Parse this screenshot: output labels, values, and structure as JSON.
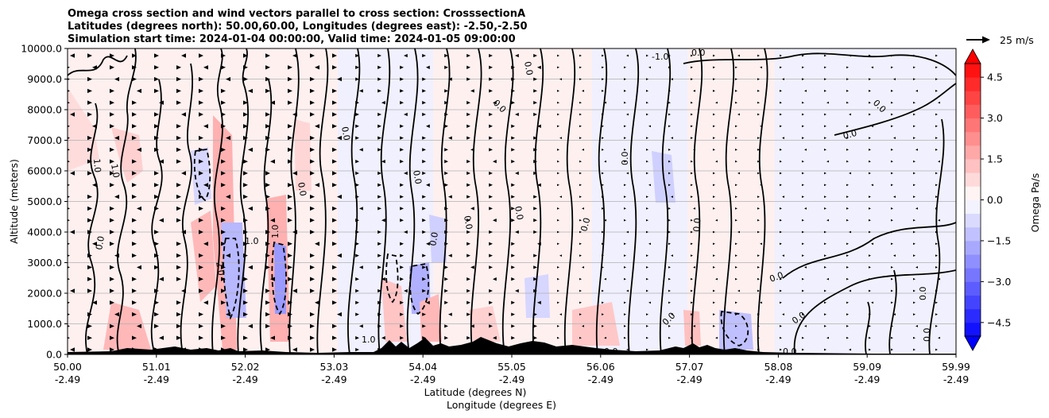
{
  "chart_data": {
    "type": "contourf",
    "title_lines": [
      "Omega cross section and wind vectors parallel to cross section: CrosssectionA",
      "Latitudes (degrees north): 50.00,60.00, Longitudes (degrees east): -2.50,-2.50",
      "Simulation start time: 2024-01-04 00:00:00, Valid time: 2024-01-05 09:00:00"
    ],
    "ylabel": "Altitude (meters)",
    "xlabel_lines": [
      "Latitude (degrees N)",
      "Longitude (degrees E)"
    ],
    "ylim": [
      0,
      10000
    ],
    "xlim": [
      50.0,
      59.99
    ],
    "y_ticks": [
      "0.0",
      "1000.0",
      "2000.0",
      "3000.0",
      "4000.0",
      "5000.0",
      "6000.0",
      "7000.0",
      "8000.0",
      "9000.0",
      "10000.0"
    ],
    "x_ticks": [
      {
        "lat": "50.00",
        "lon": "-2.49"
      },
      {
        "lat": "51.01",
        "lon": "-2.49"
      },
      {
        "lat": "52.02",
        "lon": "-2.49"
      },
      {
        "lat": "53.03",
        "lon": "-2.49"
      },
      {
        "lat": "54.04",
        "lon": "-2.49"
      },
      {
        "lat": "55.05",
        "lon": "-2.49"
      },
      {
        "lat": "56.06",
        "lon": "-2.49"
      },
      {
        "lat": "57.07",
        "lon": "-2.49"
      },
      {
        "lat": "58.08",
        "lon": "-2.49"
      },
      {
        "lat": "59.09",
        "lon": "-2.49"
      },
      {
        "lat": "59.99",
        "lon": "-2.49"
      }
    ],
    "colorbar": {
      "label": "Omega Pa/s",
      "min": -5.0,
      "max": 5.0,
      "ticks": [
        "4.5",
        "3.0",
        "1.5",
        "0.0",
        "−1.5",
        "−3.0",
        "−4.5"
      ],
      "extend": "both"
    },
    "quiver_key": "25 m/s",
    "contour_label": "0.0",
    "contour_labels_extra": [
      "1.0",
      "-1.0",
      "2.0"
    ],
    "colors": {
      "positive": "#ff0000",
      "negative": "#0000ff",
      "terrain": "#000000"
    }
  }
}
